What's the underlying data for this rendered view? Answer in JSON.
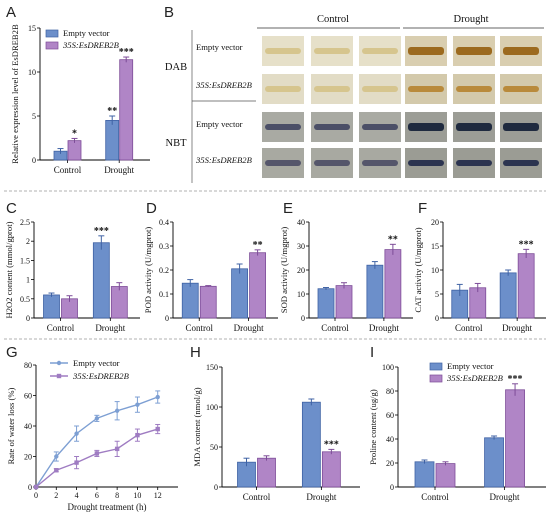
{
  "colors": {
    "ev_fill": "#6c8fca",
    "ev_edge": "#3f62a4",
    "oe_fill": "#b085c6",
    "oe_edge": "#7d4c98",
    "ev_line": "#7d9fd3",
    "oe_line": "#9f7cc2"
  },
  "panel_labels": [
    "A",
    "B",
    "C",
    "D",
    "E",
    "F",
    "G",
    "H",
    "I"
  ],
  "legend": {
    "empty_vector": "Empty vector",
    "oe": "35S:EsDREB2B"
  },
  "panelB": {
    "columns": [
      "Control",
      "Drought"
    ],
    "groups": [
      "DAB",
      "NBT"
    ],
    "rows": [
      "Empty vector",
      "35S:EsDREB2B",
      "Empty vector",
      "35S:EsDREB2B"
    ]
  },
  "chart_data": [
    {
      "panel": "A",
      "type": "bar",
      "categories": [
        "Control",
        "Drought"
      ],
      "ylabel": "Relative expression level of EsDREB2B",
      "ylim": [
        0,
        15
      ],
      "yticks": [
        0,
        5,
        10,
        15
      ],
      "series": [
        {
          "name": "Empty vector",
          "values": [
            1.0,
            4.5
          ],
          "errors": [
            0.3,
            0.5
          ],
          "stars": [
            "",
            "**"
          ]
        },
        {
          "name": "35S:EsDREB2B",
          "values": [
            2.2,
            11.4
          ],
          "errors": [
            0.25,
            0.3
          ],
          "stars": [
            "*",
            "***"
          ]
        }
      ]
    },
    {
      "panel": "C",
      "type": "bar",
      "categories": [
        "Control",
        "Drought"
      ],
      "ylabel": "H2O2 content (mmol/gprot)",
      "ylim": [
        0,
        2.5
      ],
      "yticks": [
        0,
        0.5,
        1.0,
        1.5,
        2.0,
        2.5
      ],
      "series": [
        {
          "name": "Empty vector",
          "values": [
            0.6,
            1.96
          ],
          "errors": [
            0.05,
            0.18
          ],
          "stars": [
            "",
            "***"
          ]
        },
        {
          "name": "35S:EsDREB2B",
          "values": [
            0.5,
            0.82
          ],
          "errors": [
            0.08,
            0.1
          ],
          "stars": [
            "",
            ""
          ]
        }
      ]
    },
    {
      "panel": "D",
      "type": "bar",
      "categories": [
        "Control",
        "Drought"
      ],
      "ylabel": "POD activity (U/mgprot)",
      "ylim": [
        0,
        0.4
      ],
      "yticks": [
        0,
        0.1,
        0.2,
        0.3,
        0.4
      ],
      "series": [
        {
          "name": "Empty vector",
          "values": [
            0.145,
            0.205
          ],
          "errors": [
            0.015,
            0.02
          ],
          "stars": [
            "",
            ""
          ]
        },
        {
          "name": "35S:EsDREB2B",
          "values": [
            0.132,
            0.272
          ],
          "errors": [
            0.003,
            0.012
          ],
          "stars": [
            "",
            "**"
          ]
        }
      ]
    },
    {
      "panel": "E",
      "type": "bar",
      "categories": [
        "Control",
        "Drought"
      ],
      "ylabel": "SOD activity (U/mgprot)",
      "ylim": [
        0,
        40
      ],
      "yticks": [
        0,
        10,
        20,
        30,
        40
      ],
      "series": [
        {
          "name": "Empty vector",
          "values": [
            12.2,
            22.0
          ],
          "errors": [
            0.5,
            1.5
          ],
          "stars": [
            "",
            ""
          ]
        },
        {
          "name": "35S:EsDREB2B",
          "values": [
            13.5,
            28.5
          ],
          "errors": [
            1.2,
            2.2
          ],
          "stars": [
            "",
            "**"
          ]
        }
      ]
    },
    {
      "panel": "F",
      "type": "bar",
      "categories": [
        "Control",
        "Drought"
      ],
      "ylabel": "CAT activity (U/mgprot)",
      "ylim": [
        0,
        20
      ],
      "yticks": [
        0,
        5,
        10,
        15,
        20
      ],
      "series": [
        {
          "name": "Empty vector",
          "values": [
            5.8,
            9.4
          ],
          "errors": [
            1.2,
            0.6
          ],
          "stars": [
            "",
            ""
          ]
        },
        {
          "name": "35S:EsDREB2B",
          "values": [
            6.3,
            13.4
          ],
          "errors": [
            0.9,
            0.9
          ],
          "stars": [
            "",
            "***"
          ]
        }
      ]
    },
    {
      "panel": "G",
      "type": "line",
      "xlabel": "Drought treatment (h)",
      "ylabel": "Rate of water loss (%)",
      "xlim": [
        0,
        14
      ],
      "xticks": [
        0,
        2,
        4,
        6,
        8,
        10,
        12
      ],
      "ylim": [
        0,
        80
      ],
      "yticks": [
        0,
        20,
        40,
        60,
        80
      ],
      "x": [
        0,
        2,
        4,
        6,
        8,
        10,
        12
      ],
      "series": [
        {
          "name": "Empty vector",
          "values": [
            0,
            20,
            35,
            45,
            50,
            54,
            59
          ],
          "errors": [
            0,
            3,
            5,
            2,
            6,
            5,
            4
          ]
        },
        {
          "name": "35S:EsDREB2B",
          "values": [
            0,
            11,
            16,
            22,
            25,
            34,
            38
          ],
          "errors": [
            0,
            1,
            4,
            2,
            5,
            4,
            3
          ]
        }
      ]
    },
    {
      "panel": "H",
      "type": "bar",
      "categories": [
        "Control",
        "Drought"
      ],
      "ylabel": "MDA content (nmol/g)",
      "ylim": [
        0,
        150
      ],
      "yticks": [
        0,
        50,
        100,
        150
      ],
      "series": [
        {
          "name": "Empty vector",
          "values": [
            31,
            106
          ],
          "errors": [
            5,
            4
          ],
          "stars": [
            "",
            ""
          ]
        },
        {
          "name": "35S:EsDREB2B",
          "values": [
            36,
            44
          ],
          "errors": [
            3,
            3
          ],
          "stars": [
            "",
            "***"
          ]
        }
      ]
    },
    {
      "panel": "I",
      "type": "bar",
      "categories": [
        "Control",
        "Drought"
      ],
      "ylabel": "Proline content (ug/g)",
      "ylim": [
        0,
        100
      ],
      "yticks": [
        0,
        20,
        40,
        60,
        80,
        100
      ],
      "series": [
        {
          "name": "Empty vector",
          "values": [
            21,
            41
          ],
          "errors": [
            1.5,
            1.5
          ],
          "stars": [
            "",
            ""
          ]
        },
        {
          "name": "35S:EsDREB2B",
          "values": [
            19.5,
            81
          ],
          "errors": [
            1.5,
            5
          ],
          "stars": [
            "",
            "***"
          ]
        }
      ]
    }
  ]
}
